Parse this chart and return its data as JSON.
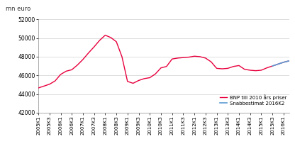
{
  "ylabel": "mn euro",
  "ylim": [
    42000,
    52000
  ],
  "yticks": [
    42000,
    44000,
    46000,
    48000,
    50000,
    52000
  ],
  "ytick_labels": [
    "42000",
    "44000",
    "46000",
    "48000",
    "50000",
    "52000"
  ],
  "line_color_bnp": "#e8003d",
  "line_color_snabb": "#5b9bd5",
  "legend_bnp": "BNP till 2010 års priser",
  "legend_snabb": "Snabbestimat 2016K2",
  "xtick_labels": [
    "2005K1",
    "2005K3",
    "2006K1",
    "2006K3",
    "2007K1",
    "2007K3",
    "2008K1",
    "2008K3",
    "2009K1",
    "2009K3",
    "2010K1",
    "2010K3",
    "2011K1",
    "2011K3",
    "2012K1",
    "2012K3",
    "2013K1",
    "2013K3",
    "2014K1",
    "2014K3",
    "2015K1",
    "2015K3",
    "2016K1"
  ],
  "background_color": "#ffffff",
  "grid_color": "#d0d0d0",
  "bnp_data": {
    "2005K1": 44650,
    "2005K2": 44850,
    "2005K3": 45050,
    "2005K4": 45400,
    "2006K1": 46100,
    "2006K2": 46450,
    "2006K3": 46600,
    "2006K4": 47100,
    "2007K1": 47700,
    "2007K2": 48400,
    "2007K3": 49050,
    "2007K4": 49750,
    "2008K1": 50300,
    "2008K2": 50050,
    "2008K3": 49600,
    "2008K4": 48000,
    "2009K1": 45350,
    "2009K2": 45150,
    "2009K3": 45450,
    "2009K4": 45650,
    "2010K1": 45750,
    "2010K2": 46150,
    "2010K3": 46800,
    "2010K4": 46950,
    "2011K1": 47750,
    "2011K2": 47850,
    "2011K3": 47900,
    "2011K4": 47950,
    "2012K1": 48050,
    "2012K2": 48000,
    "2012K3": 47850,
    "2012K4": 47450,
    "2013K1": 46750,
    "2013K2": 46700,
    "2013K3": 46750,
    "2013K4": 46950,
    "2014K1": 47050,
    "2014K2": 46650,
    "2014K3": 46550,
    "2014K4": 46500,
    "2015K1": 46550,
    "2015K2": 46800,
    "2015K3": 47000,
    "2015K4": 47200,
    "2016K1": 47400,
    "2016K2": 47550
  },
  "snabb_data": {
    "2015K3": 47000,
    "2015K4": 47200,
    "2016K1": 47400,
    "2016K2": 47550
  }
}
